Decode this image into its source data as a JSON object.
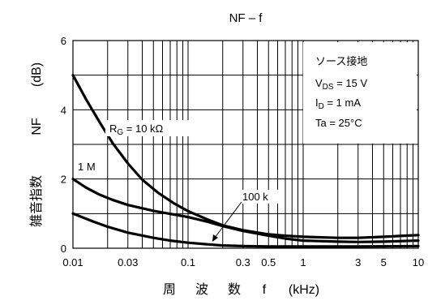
{
  "chart_data": {
    "type": "line",
    "title": "NF – f",
    "xlabel": {
      "chars": [
        "周",
        "波",
        "数",
        "f",
        "(kHz)"
      ]
    },
    "ylabel": {
      "chars": [
        "雑音指数",
        "NF",
        "(dB)"
      ]
    },
    "x_scale": "log",
    "xlim": [
      0.01,
      10
    ],
    "ylim": [
      0,
      6
    ],
    "grid": true,
    "x_tick_labels": [
      {
        "value": 0.01,
        "label": "0.01"
      },
      {
        "value": 0.03,
        "label": "0.03"
      },
      {
        "value": 0.1,
        "label": "0.1"
      },
      {
        "value": 0.3,
        "label": "0.3"
      },
      {
        "value": 0.5,
        "label": "0.5"
      },
      {
        "value": 1,
        "label": "1"
      },
      {
        "value": 3,
        "label": "3"
      },
      {
        "value": 5,
        "label": "5"
      },
      {
        "value": 10,
        "label": "10"
      }
    ],
    "y_tick_labels": [
      {
        "value": 0,
        "label": "0"
      },
      {
        "value": 2,
        "label": "2"
      },
      {
        "value": 4,
        "label": "4"
      },
      {
        "value": 6,
        "label": "6"
      }
    ],
    "conditions": {
      "line1": "ソース接地",
      "line2": {
        "main": "V",
        "sub": "DS",
        "rest": " = 15 V"
      },
      "line3": {
        "main": "I",
        "sub": "D",
        "rest": " = 1 mA"
      },
      "line4": "Ta = 25°C"
    },
    "series": [
      {
        "name": "RG = 10 kΩ",
        "points": [
          [
            0.01,
            5.0
          ],
          [
            0.013,
            4.3
          ],
          [
            0.017,
            3.65
          ],
          [
            0.022,
            3.05
          ],
          [
            0.03,
            2.45
          ],
          [
            0.04,
            1.98
          ],
          [
            0.055,
            1.6
          ],
          [
            0.075,
            1.3
          ],
          [
            0.1,
            1.07
          ],
          [
            0.15,
            0.82
          ],
          [
            0.2,
            0.66
          ],
          [
            0.3,
            0.52
          ],
          [
            0.5,
            0.4
          ],
          [
            0.7,
            0.36
          ],
          [
            1,
            0.33
          ],
          [
            2,
            0.3
          ],
          [
            3,
            0.3
          ],
          [
            5,
            0.33
          ],
          [
            10,
            0.38
          ]
        ]
      },
      {
        "name": "1 M",
        "points": [
          [
            0.01,
            2.0
          ],
          [
            0.013,
            1.75
          ],
          [
            0.017,
            1.55
          ],
          [
            0.022,
            1.4
          ],
          [
            0.03,
            1.25
          ],
          [
            0.05,
            1.08
          ],
          [
            0.1,
            0.9
          ],
          [
            0.15,
            0.76
          ],
          [
            0.2,
            0.64
          ],
          [
            0.3,
            0.5
          ],
          [
            0.5,
            0.36
          ],
          [
            0.7,
            0.28
          ],
          [
            1,
            0.22
          ],
          [
            2,
            0.19
          ],
          [
            3,
            0.18
          ],
          [
            5,
            0.19
          ],
          [
            10,
            0.22
          ]
        ]
      },
      {
        "name": "100 k",
        "points": [
          [
            0.01,
            1.0
          ],
          [
            0.015,
            0.77
          ],
          [
            0.02,
            0.62
          ],
          [
            0.03,
            0.45
          ],
          [
            0.05,
            0.3
          ],
          [
            0.07,
            0.22
          ],
          [
            0.1,
            0.16
          ],
          [
            0.15,
            0.11
          ],
          [
            0.2,
            0.08
          ],
          [
            0.3,
            0.06
          ],
          [
            0.5,
            0.05
          ],
          [
            1,
            0.05
          ],
          [
            3,
            0.05
          ],
          [
            10,
            0.06
          ]
        ]
      }
    ],
    "annotations": [
      {
        "series": "RG = 10 kΩ",
        "parts": {
          "main": "R",
          "sub": "G",
          "rest": " = 10 kΩ"
        }
      },
      {
        "series": "1 M",
        "text": "1 M"
      },
      {
        "series": "100 k",
        "text": "100 k"
      }
    ]
  }
}
